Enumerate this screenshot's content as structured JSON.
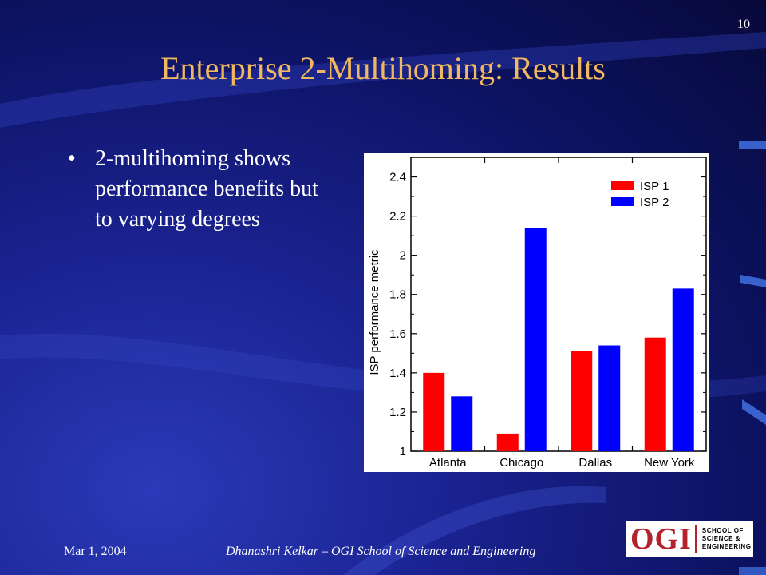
{
  "slide": {
    "number": "10",
    "title": "Enterprise 2-Multihoming: Results",
    "bullets": [
      "2-multihoming shows performance benefits but to varying degrees"
    ]
  },
  "footer": {
    "date": "Mar 1, 2004",
    "author": "Dhanashri Kelkar – OGI School of Science and Engineering"
  },
  "logo": {
    "mark": "OGI",
    "lines": [
      "SCHOOL OF",
      "SCIENCE &",
      "ENGINEERING"
    ]
  },
  "colors": {
    "title": "#f0b860",
    "isp1": "#ff0000",
    "isp2": "#0000ff"
  },
  "chart_data": {
    "type": "bar",
    "categories": [
      "Atlanta",
      "Chicago",
      "Dallas",
      "New York"
    ],
    "series": [
      {
        "name": "ISP 1",
        "values": [
          1.4,
          1.09,
          1.51,
          1.58
        ]
      },
      {
        "name": "ISP 2",
        "values": [
          1.28,
          2.14,
          1.54,
          1.83
        ]
      }
    ],
    "ylabel": "ISP performance metric",
    "xlabel": "",
    "ylim": [
      1,
      2.5
    ],
    "yticks": [
      "1",
      "1.2",
      "1.4",
      "1.6",
      "1.8",
      "2",
      "2.2",
      "2.4"
    ],
    "legend": "top-right"
  }
}
